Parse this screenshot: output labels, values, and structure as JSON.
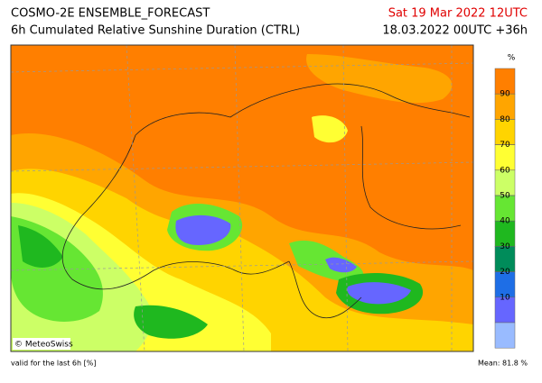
{
  "header": {
    "title": "COSMO-2E ENSEMBLE_FORECAST",
    "subtitle": "6h Cumulated Relative Sunshine Duration (CTRL)",
    "valid_time": "Sat 19 Mar 2022 12UTC",
    "run_time": "18.03.2022 00UTC +36h"
  },
  "map": {
    "credit": "© MeteoSwiss"
  },
  "legend": {
    "unit": "%",
    "ticks": [
      90,
      80,
      70,
      60,
      50,
      40,
      30,
      20,
      10
    ],
    "colors": [
      "#ff7f00",
      "#ffa500",
      "#ffd400",
      "#ffff33",
      "#ccff66",
      "#66e633",
      "#1fb81f",
      "#008c5a",
      "#1e6ee6",
      "#6666ff",
      "#99bbff"
    ]
  },
  "footer": {
    "note": "valid for the last 6h [%]",
    "mean": "Mean:  81.8 %"
  }
}
